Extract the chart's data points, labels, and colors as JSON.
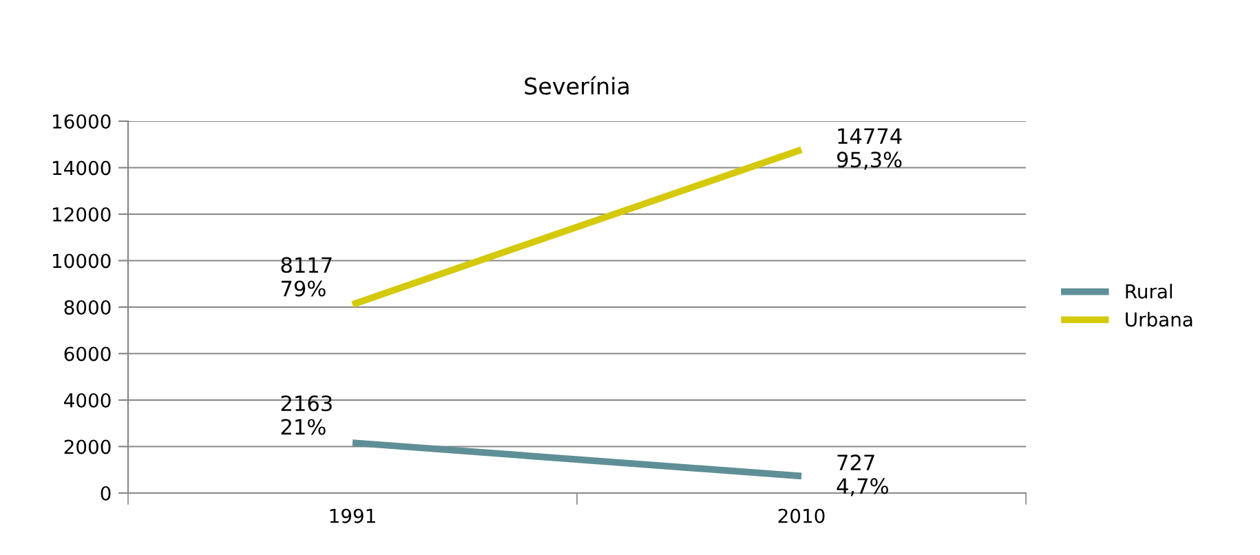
{
  "chart_data": {
    "type": "line",
    "title": "Severínia",
    "categories": [
      "1991",
      "2010"
    ],
    "series": [
      {
        "name": "Rural",
        "color": "#5f8f96",
        "values": [
          2163,
          727
        ],
        "value_labels": [
          "2163\n21%",
          "727\n4,7%"
        ]
      },
      {
        "name": "Urbana",
        "color": "#d4c90a",
        "values": [
          8117,
          14774
        ],
        "value_labels": [
          "8117\n79%",
          "14774\n95,3%"
        ]
      }
    ],
    "ylim": [
      0,
      16000
    ],
    "yticks": [
      0,
      2000,
      4000,
      6000,
      8000,
      10000,
      12000,
      14000,
      16000
    ],
    "grid": "y",
    "legend": "right",
    "marker": "none",
    "line_style": "solid"
  }
}
